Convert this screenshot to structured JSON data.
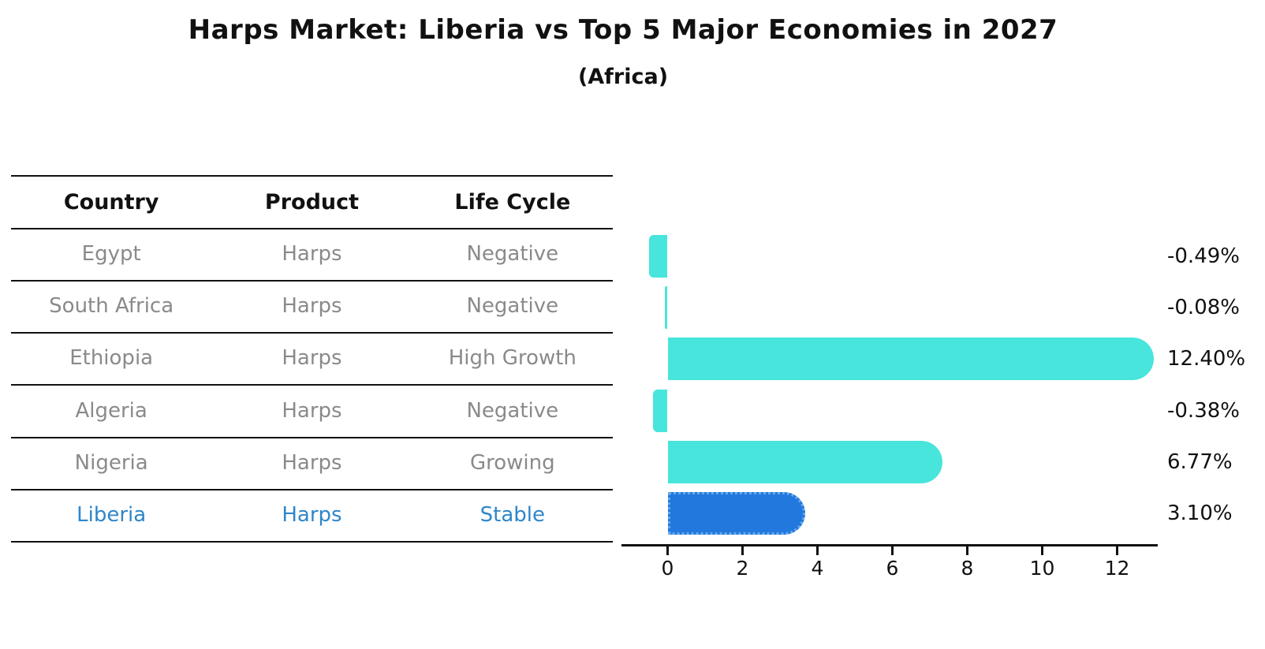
{
  "title": "Harps Market: Liberia vs Top 5 Major Economies in 2027",
  "subtitle": "(Africa)",
  "table": {
    "columns": [
      "Country",
      "Product",
      "Life Cycle"
    ],
    "rows": [
      {
        "country": "Egypt",
        "product": "Harps",
        "life_cycle": "Negative",
        "highlight": false
      },
      {
        "country": "South Africa",
        "product": "Harps",
        "life_cycle": "Negative",
        "highlight": false
      },
      {
        "country": "Ethiopia",
        "product": "Harps",
        "life_cycle": "High Growth",
        "highlight": false
      },
      {
        "country": "Algeria",
        "product": "Harps",
        "life_cycle": "Negative",
        "highlight": false
      },
      {
        "country": "Nigeria",
        "product": "Harps",
        "life_cycle": "Growing",
        "highlight": false
      },
      {
        "country": "Liberia",
        "product": "Harps",
        "life_cycle": "Stable",
        "highlight": true
      }
    ]
  },
  "chart_data": {
    "type": "bar",
    "orientation": "horizontal",
    "categories": [
      "Egypt",
      "South Africa",
      "Ethiopia",
      "Algeria",
      "Nigeria",
      "Liberia"
    ],
    "values": [
      -0.49,
      -0.08,
      12.4,
      -0.38,
      6.77,
      3.1
    ],
    "value_labels": [
      "-0.49%",
      "-0.08%",
      "12.40%",
      "-0.38%",
      "6.77%",
      "3.10%"
    ],
    "highlight_index": 5,
    "xticks": [
      "0",
      "2",
      "4",
      "6",
      "8",
      "10",
      "12"
    ],
    "xtick_values": [
      0,
      2,
      4,
      6,
      8,
      10,
      12
    ],
    "xlim": [
      -1.25,
      13.1
    ],
    "grid": false,
    "legend": "none",
    "title": "Harps Market: Liberia vs Top 5 Major Economies in 2027",
    "subtitle": "(Africa)"
  },
  "colors": {
    "default_bar": "#47e5db",
    "highlight_bar": "#2278dc",
    "highlight_bar_border": "#66a9ed",
    "table_text": "#8a8a8a",
    "highlight_text": "#2e86ca",
    "axis": "#111111"
  }
}
